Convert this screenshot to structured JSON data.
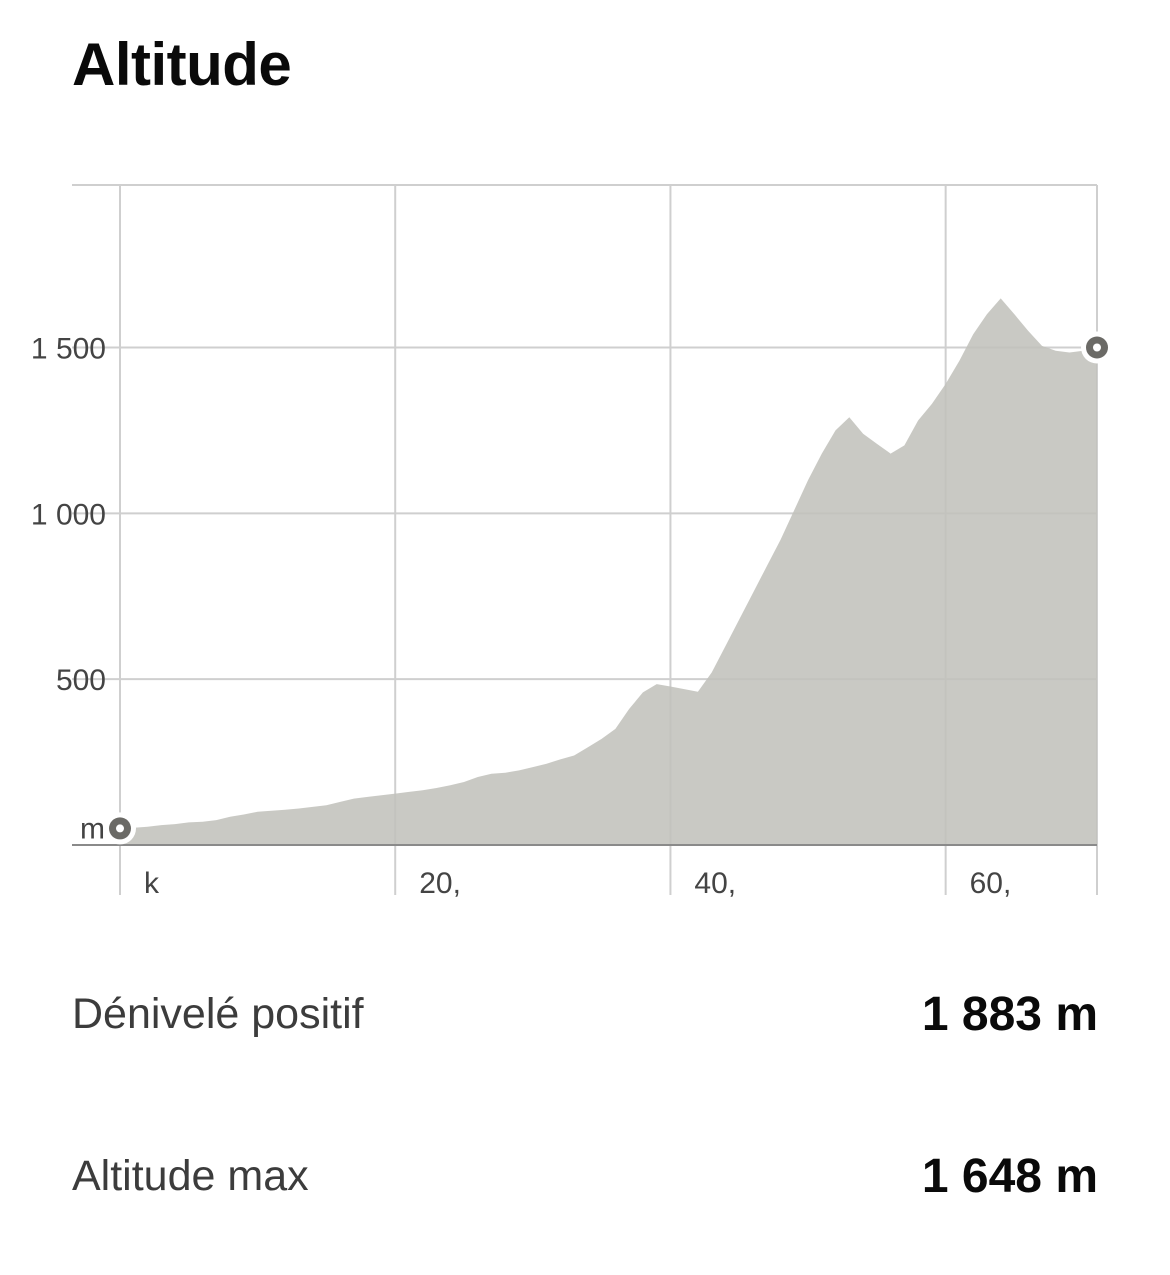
{
  "title": "Altitude",
  "stats": [
    {
      "label": "Dénivelé positif",
      "value": "1 883 m"
    },
    {
      "label": "Altitude max",
      "value": "1 648 m"
    }
  ],
  "chart_data": {
    "type": "area",
    "xlabel": "",
    "ylabel": "",
    "y_unit_label": "m",
    "x_unit_label": "k",
    "xlim": [
      0,
      71
    ],
    "ylim": [
      0,
      1990
    ],
    "y_ticks": [
      {
        "value": 500,
        "label": "500"
      },
      {
        "value": 1000,
        "label": "1 000"
      },
      {
        "value": 1500,
        "label": "1 500"
      }
    ],
    "x_ticks": [
      {
        "value": 20,
        "label": "20,"
      },
      {
        "value": 40,
        "label": "40,"
      },
      {
        "value": 60,
        "label": "60,"
      }
    ],
    "grid": true,
    "fill_color": "#c2c1bc",
    "marker_color": "#6b6a66",
    "series": [
      {
        "x": [
          0,
          1,
          2,
          3,
          4,
          5,
          6,
          7,
          8,
          9,
          10,
          11,
          12,
          13,
          14,
          15,
          16,
          17,
          18,
          19,
          20,
          21,
          22,
          23,
          24,
          25,
          26,
          27,
          28,
          29,
          30,
          31,
          32,
          33,
          34,
          35,
          36,
          37,
          38,
          39,
          40,
          41,
          42,
          43,
          44,
          45,
          46,
          47,
          48,
          49,
          50,
          51,
          52,
          53,
          54,
          55,
          56,
          57,
          58,
          59,
          60,
          61,
          62,
          63,
          64,
          65,
          66,
          67,
          68,
          69,
          70,
          71
        ],
        "y": [
          50,
          52,
          55,
          60,
          63,
          68,
          70,
          75,
          85,
          92,
          100,
          103,
          106,
          110,
          115,
          120,
          130,
          140,
          145,
          150,
          155,
          160,
          165,
          172,
          180,
          190,
          205,
          215,
          218,
          225,
          235,
          245,
          258,
          270,
          295,
          320,
          350,
          410,
          460,
          485,
          478,
          470,
          462,
          520,
          600,
          680,
          760,
          840,
          920,
          1010,
          1100,
          1180,
          1250,
          1290,
          1240,
          1210,
          1180,
          1205,
          1280,
          1330,
          1390,
          1460,
          1540,
          1600,
          1648,
          1600,
          1550,
          1505,
          1490,
          1485,
          1490,
          1500
        ]
      }
    ]
  }
}
